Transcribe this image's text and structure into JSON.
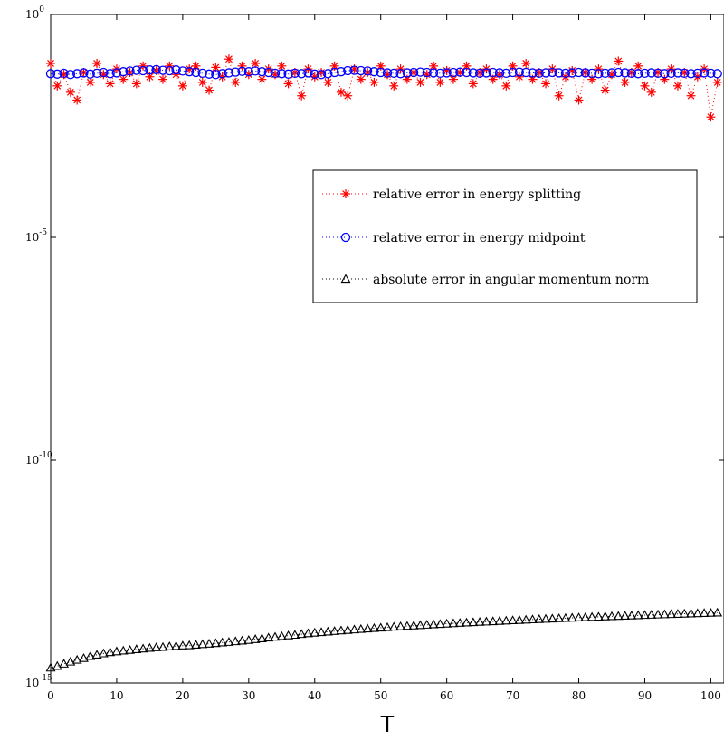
{
  "chart_data": {
    "type": "scatter",
    "title": "",
    "xlabel": "T",
    "ylabel": "",
    "xlim": [
      0,
      102
    ],
    "ylim": [
      1e-15,
      1
    ],
    "yscale": "log",
    "grid": false,
    "legend_position": "right",
    "x_ticks": [
      0,
      10,
      20,
      30,
      40,
      50,
      60,
      70,
      80,
      90,
      100
    ],
    "x_tick_labels": [
      "0",
      "10",
      "20",
      "30",
      "40",
      "50",
      "60",
      "70",
      "80",
      "90",
      "100"
    ],
    "y_ticks": [
      1e-15,
      1e-10,
      1e-05,
      1
    ],
    "y_tick_labels": [
      {
        "base": "10",
        "exp": "-15"
      },
      {
        "base": "10",
        "exp": "-10"
      },
      {
        "base": "10",
        "exp": "-5"
      },
      {
        "base": "10",
        "exp": "0"
      }
    ],
    "series": [
      {
        "name": "relative error in energy splitting",
        "color": "#ff0000",
        "marker": "asterisk",
        "x": [
          0,
          1,
          2,
          3,
          4,
          5,
          6,
          7,
          8,
          9,
          10,
          11,
          12,
          13,
          14,
          15,
          16,
          17,
          18,
          19,
          20,
          21,
          22,
          23,
          24,
          25,
          26,
          27,
          28,
          29,
          30,
          31,
          32,
          33,
          34,
          35,
          36,
          37,
          38,
          39,
          40,
          41,
          42,
          43,
          44,
          45,
          46,
          47,
          48,
          49,
          50,
          51,
          52,
          53,
          54,
          55,
          56,
          57,
          58,
          59,
          60,
          61,
          62,
          63,
          64,
          65,
          66,
          67,
          68,
          69,
          70,
          71,
          72,
          73,
          74,
          75,
          76,
          77,
          78,
          79,
          80,
          81,
          82,
          83,
          84,
          85,
          86,
          87,
          88,
          89,
          90,
          91,
          92,
          93,
          94,
          95,
          96,
          97,
          98,
          99,
          100,
          101
        ],
        "y": [
          0.08,
          0.025,
          0.045,
          0.018,
          0.012,
          0.05,
          0.03,
          0.08,
          0.045,
          0.028,
          0.06,
          0.035,
          0.05,
          0.028,
          0.07,
          0.04,
          0.055,
          0.035,
          0.07,
          0.045,
          0.025,
          0.06,
          0.07,
          0.03,
          0.02,
          0.065,
          0.04,
          0.1,
          0.03,
          0.07,
          0.045,
          0.08,
          0.035,
          0.06,
          0.045,
          0.07,
          0.028,
          0.05,
          0.015,
          0.06,
          0.04,
          0.05,
          0.03,
          0.07,
          0.018,
          0.015,
          0.06,
          0.035,
          0.05,
          0.03,
          0.07,
          0.045,
          0.025,
          0.06,
          0.035,
          0.05,
          0.03,
          0.045,
          0.07,
          0.03,
          0.055,
          0.035,
          0.05,
          0.07,
          0.028,
          0.05,
          0.06,
          0.035,
          0.045,
          0.025,
          0.07,
          0.04,
          0.08,
          0.035,
          0.05,
          0.028,
          0.06,
          0.015,
          0.04,
          0.055,
          0.012,
          0.05,
          0.035,
          0.06,
          0.02,
          0.045,
          0.09,
          0.03,
          0.05,
          0.07,
          0.025,
          0.018,
          0.05,
          0.035,
          0.06,
          0.025,
          0.05,
          0.015,
          0.04,
          0.06,
          0.005,
          0.03
        ]
      },
      {
        "name": "relative error in energy midpoint",
        "color": "#0000ff",
        "marker": "circle",
        "x": [
          0,
          1,
          2,
          3,
          4,
          5,
          6,
          7,
          8,
          9,
          10,
          11,
          12,
          13,
          14,
          15,
          16,
          17,
          18,
          19,
          20,
          21,
          22,
          23,
          24,
          25,
          26,
          27,
          28,
          29,
          30,
          31,
          32,
          33,
          34,
          35,
          36,
          37,
          38,
          39,
          40,
          41,
          42,
          43,
          44,
          45,
          46,
          47,
          48,
          49,
          50,
          51,
          52,
          53,
          54,
          55,
          56,
          57,
          58,
          59,
          60,
          61,
          62,
          63,
          64,
          65,
          66,
          67,
          68,
          69,
          70,
          71,
          72,
          73,
          74,
          75,
          76,
          77,
          78,
          79,
          80,
          81,
          82,
          83,
          84,
          85,
          86,
          87,
          88,
          89,
          90,
          91,
          92,
          93,
          94,
          95,
          96,
          97,
          98,
          99,
          100,
          101
        ],
        "y": [
          0.047,
          0.046,
          0.048,
          0.045,
          0.047,
          0.049,
          0.046,
          0.048,
          0.05,
          0.047,
          0.049,
          0.052,
          0.054,
          0.056,
          0.055,
          0.057,
          0.058,
          0.056,
          0.055,
          0.057,
          0.054,
          0.052,
          0.05,
          0.048,
          0.046,
          0.045,
          0.047,
          0.049,
          0.051,
          0.053,
          0.052,
          0.054,
          0.052,
          0.05,
          0.048,
          0.047,
          0.046,
          0.048,
          0.047,
          0.049,
          0.046,
          0.045,
          0.047,
          0.05,
          0.052,
          0.055,
          0.056,
          0.055,
          0.054,
          0.052,
          0.05,
          0.049,
          0.048,
          0.047,
          0.049,
          0.05,
          0.051,
          0.05,
          0.049,
          0.048,
          0.049,
          0.05,
          0.051,
          0.05,
          0.049,
          0.048,
          0.049,
          0.05,
          0.049,
          0.048,
          0.05,
          0.051,
          0.05,
          0.049,
          0.048,
          0.049,
          0.05,
          0.049,
          0.048,
          0.049,
          0.05,
          0.049,
          0.048,
          0.047,
          0.048,
          0.049,
          0.05,
          0.049,
          0.048,
          0.047,
          0.048,
          0.049,
          0.048,
          0.047,
          0.048,
          0.049,
          0.048,
          0.047,
          0.048,
          0.049,
          0.048,
          0.047
        ]
      },
      {
        "name": "absolute error in angular momentum norm",
        "color": "#000000",
        "marker": "triangle",
        "x": [
          0,
          1,
          2,
          3,
          4,
          5,
          6,
          7,
          8,
          9,
          10,
          11,
          12,
          13,
          14,
          15,
          16,
          17,
          18,
          19,
          20,
          21,
          22,
          23,
          24,
          25,
          26,
          27,
          28,
          29,
          30,
          31,
          32,
          33,
          34,
          35,
          36,
          37,
          38,
          39,
          40,
          41,
          42,
          43,
          44,
          45,
          46,
          47,
          48,
          49,
          50,
          51,
          52,
          53,
          54,
          55,
          56,
          57,
          58,
          59,
          60,
          61,
          62,
          63,
          64,
          65,
          66,
          67,
          68,
          69,
          70,
          71,
          72,
          73,
          74,
          75,
          76,
          77,
          78,
          79,
          80,
          81,
          82,
          83,
          84,
          85,
          86,
          87,
          88,
          89,
          90,
          91,
          92,
          93,
          94,
          95,
          96,
          97,
          98,
          99,
          100,
          101
        ],
        "y": [
          2.2e-15,
          2.4e-15,
          2.7e-15,
          3e-15,
          3.3e-15,
          3.6e-15,
          4e-15,
          4.3e-15,
          4.6e-15,
          4.9e-15,
          5.1e-15,
          5.3e-15,
          5.5e-15,
          5.7e-15,
          5.9e-15,
          6.1e-15,
          6.3e-15,
          6.4e-15,
          6.6e-15,
          6.7e-15,
          6.9e-15,
          7e-15,
          7.2e-15,
          7.4e-15,
          7.6e-15,
          7.8e-15,
          8.1e-15,
          8.3e-15,
          8.6e-15,
          8.9e-15,
          9.2e-15,
          9.6e-15,
          1e-14,
          1.04e-14,
          1.08e-14,
          1.12e-14,
          1.16e-14,
          1.2e-14,
          1.25e-14,
          1.3e-14,
          1.34e-14,
          1.38e-14,
          1.42e-14,
          1.46e-14,
          1.5e-14,
          1.54e-14,
          1.58e-14,
          1.62e-14,
          1.66e-14,
          1.7e-14,
          1.74e-14,
          1.78e-14,
          1.82e-14,
          1.86e-14,
          1.9e-14,
          1.94e-14,
          1.98e-14,
          2.02e-14,
          2.06e-14,
          2.1e-14,
          2.14e-14,
          2.18e-14,
          2.22e-14,
          2.26e-14,
          2.3e-14,
          2.34e-14,
          2.38e-14,
          2.42e-14,
          2.46e-14,
          2.5e-14,
          2.54e-14,
          2.58e-14,
          2.62e-14,
          2.66e-14,
          2.7e-14,
          2.74e-14,
          2.78e-14,
          2.82e-14,
          2.86e-14,
          2.9e-14,
          2.94e-14,
          2.98e-14,
          3.02e-14,
          3.06e-14,
          3.1e-14,
          3.14e-14,
          3.18e-14,
          3.22e-14,
          3.26e-14,
          3.3e-14,
          3.34e-14,
          3.38e-14,
          3.42e-14,
          3.46e-14,
          3.5e-14,
          3.54e-14,
          3.58e-14,
          3.62e-14,
          3.66e-14,
          3.7e-14,
          3.74e-14,
          3.78e-14
        ]
      }
    ]
  }
}
